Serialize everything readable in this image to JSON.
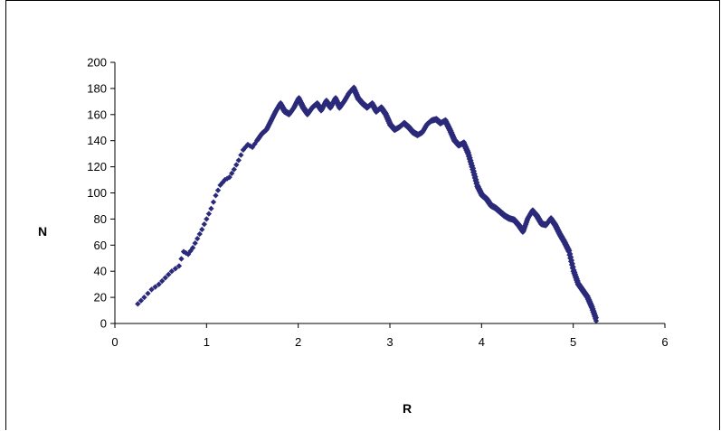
{
  "chart_data": {
    "type": "scatter",
    "title": "",
    "xlabel": "R",
    "ylabel": "N",
    "xlim": [
      0,
      6
    ],
    "ylim": [
      0,
      200
    ],
    "x_ticks": [
      0,
      1,
      2,
      3,
      4,
      5,
      6
    ],
    "y_ticks": [
      0,
      20,
      40,
      60,
      80,
      100,
      120,
      140,
      160,
      180,
      200
    ],
    "grid": false,
    "legend": "none",
    "marker_color": "#2b2a7a",
    "series": [
      {
        "points": [
          [
            0.25,
            15
          ],
          [
            0.32,
            20
          ],
          [
            0.4,
            26
          ],
          [
            0.48,
            30
          ],
          [
            0.55,
            35
          ],
          [
            0.62,
            40
          ],
          [
            0.7,
            44
          ],
          [
            0.75,
            55
          ],
          [
            0.8,
            53
          ],
          [
            0.85,
            58
          ],
          [
            0.9,
            65
          ],
          [
            0.95,
            72
          ],
          [
            1.0,
            80
          ],
          [
            1.05,
            88
          ],
          [
            1.1,
            98
          ],
          [
            1.15,
            106
          ],
          [
            1.2,
            110
          ],
          [
            1.25,
            112
          ],
          [
            1.3,
            118
          ],
          [
            1.35,
            125
          ],
          [
            1.4,
            133
          ],
          [
            1.45,
            137
          ],
          [
            1.5,
            135
          ],
          [
            1.55,
            140
          ],
          [
            1.6,
            145
          ],
          [
            1.65,
            148
          ],
          [
            1.7,
            155
          ],
          [
            1.75,
            162
          ],
          [
            1.8,
            168
          ],
          [
            1.85,
            162
          ],
          [
            1.9,
            160
          ],
          [
            1.95,
            165
          ],
          [
            2.0,
            172
          ],
          [
            2.05,
            165
          ],
          [
            2.1,
            160
          ],
          [
            2.15,
            165
          ],
          [
            2.2,
            168
          ],
          [
            2.25,
            163
          ],
          [
            2.3,
            170
          ],
          [
            2.35,
            165
          ],
          [
            2.4,
            172
          ],
          [
            2.45,
            165
          ],
          [
            2.5,
            170
          ],
          [
            2.55,
            176
          ],
          [
            2.6,
            180
          ],
          [
            2.65,
            172
          ],
          [
            2.7,
            168
          ],
          [
            2.75,
            165
          ],
          [
            2.8,
            168
          ],
          [
            2.85,
            162
          ],
          [
            2.9,
            165
          ],
          [
            2.95,
            160
          ],
          [
            3.0,
            152
          ],
          [
            3.05,
            148
          ],
          [
            3.1,
            150
          ],
          [
            3.15,
            153
          ],
          [
            3.2,
            150
          ],
          [
            3.25,
            146
          ],
          [
            3.3,
            144
          ],
          [
            3.35,
            146
          ],
          [
            3.4,
            152
          ],
          [
            3.45,
            155
          ],
          [
            3.5,
            156
          ],
          [
            3.55,
            153
          ],
          [
            3.6,
            155
          ],
          [
            3.65,
            148
          ],
          [
            3.7,
            140
          ],
          [
            3.75,
            136
          ],
          [
            3.8,
            138
          ],
          [
            3.85,
            130
          ],
          [
            3.9,
            118
          ],
          [
            3.95,
            105
          ],
          [
            4.0,
            98
          ],
          [
            4.05,
            95
          ],
          [
            4.1,
            90
          ],
          [
            4.15,
            88
          ],
          [
            4.2,
            85
          ],
          [
            4.25,
            82
          ],
          [
            4.3,
            80
          ],
          [
            4.35,
            79
          ],
          [
            4.4,
            75
          ],
          [
            4.45,
            70
          ],
          [
            4.5,
            80
          ],
          [
            4.55,
            86
          ],
          [
            4.6,
            82
          ],
          [
            4.65,
            76
          ],
          [
            4.7,
            75
          ],
          [
            4.75,
            80
          ],
          [
            4.8,
            75
          ],
          [
            4.85,
            68
          ],
          [
            4.9,
            62
          ],
          [
            4.95,
            55
          ],
          [
            5.0,
            40
          ],
          [
            5.05,
            30
          ],
          [
            5.1,
            25
          ],
          [
            5.15,
            20
          ],
          [
            5.2,
            12
          ],
          [
            5.25,
            2
          ]
        ]
      }
    ]
  }
}
